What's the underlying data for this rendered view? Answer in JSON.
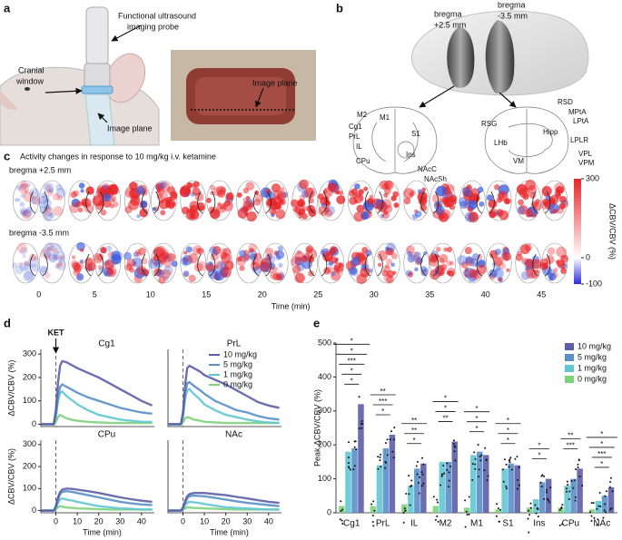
{
  "panel_labels": [
    "a",
    "b",
    "c",
    "d",
    "e"
  ],
  "panel_a": {
    "probe_label": [
      "Functional ultrasound",
      "imaging probe"
    ],
    "window_label": [
      "Cranial",
      "window"
    ],
    "plane_label": "Image plane",
    "photo_label": "Image plane"
  },
  "panel_b": {
    "bregma_front": [
      "bregma",
      "+2.5 mm"
    ],
    "bregma_back": [
      "bregma",
      "-3.5 mm"
    ],
    "regions_front": [
      "M2",
      "M1",
      "Cg1",
      "PrL",
      "IL",
      "S1",
      "CPu",
      "Ins",
      "NAcC",
      "NAcSh"
    ],
    "regions_back": [
      "RSD",
      "MPtA",
      "LPtA",
      "RSG",
      "Hipp",
      "LPLR",
      "LHb",
      "VPL",
      "VPM",
      "VM"
    ]
  },
  "panel_c": {
    "title": "Activity changes in response to 10 mg/kg i.v. ketamine",
    "row_labels": [
      "bregma +2.5 mm",
      "bregma -3.5 mm"
    ],
    "times": [
      0,
      5,
      10,
      15,
      20,
      25,
      30,
      35,
      40,
      45
    ],
    "xlabel": "Time (min)",
    "colorbar": {
      "ticks": [
        300,
        0,
        -100
      ],
      "label": "ΔCBV/CBV (%)"
    }
  },
  "chart_data": [
    {
      "type": "line",
      "title": "Cg1",
      "ylabel": "ΔCBV/CBV (%)",
      "annotation": "KET",
      "vline": 0,
      "x": [
        -7,
        -1,
        0,
        1,
        2,
        3,
        5,
        8,
        10,
        15,
        20,
        25,
        30,
        35,
        40,
        45
      ],
      "xlim": [
        -7,
        46
      ],
      "ylim": [
        -10,
        320
      ],
      "yticks": [
        0,
        100,
        200,
        300
      ],
      "series": [
        {
          "color": "#5b5ea6",
          "values": [
            0,
            0,
            60,
            180,
            250,
            270,
            265,
            250,
            240,
            220,
            200,
            175,
            150,
            125,
            100,
            80
          ]
        },
        {
          "color": "#5a8fc8",
          "values": [
            0,
            0,
            40,
            120,
            160,
            170,
            160,
            145,
            135,
            115,
            100,
            85,
            70,
            60,
            50,
            45
          ]
        },
        {
          "color": "#62c6d4",
          "values": [
            0,
            0,
            30,
            100,
            135,
            140,
            120,
            100,
            85,
            60,
            40,
            30,
            20,
            15,
            10,
            10
          ]
        },
        {
          "color": "#7ed27a",
          "values": [
            0,
            0,
            10,
            30,
            40,
            35,
            25,
            18,
            15,
            10,
            8,
            6,
            5,
            5,
            5,
            5
          ]
        }
      ]
    },
    {
      "type": "line",
      "title": "PrL",
      "legend": "upper right",
      "vline": 0,
      "x": [
        -7,
        -1,
        0,
        1,
        2,
        3,
        5,
        8,
        10,
        15,
        20,
        25,
        30,
        35,
        40,
        45
      ],
      "xlim": [
        -7,
        46
      ],
      "ylim": [
        -10,
        320
      ],
      "series": [
        {
          "name": "10 mg/kg",
          "color": "#5b5ea6",
          "values": [
            0,
            0,
            50,
            170,
            240,
            250,
            240,
            225,
            210,
            190,
            170,
            145,
            120,
            95,
            80,
            70
          ]
        },
        {
          "name": "5 mg/kg",
          "color": "#5a8fc8",
          "values": [
            0,
            0,
            40,
            130,
            175,
            180,
            165,
            145,
            130,
            100,
            80,
            60,
            50,
            35,
            25,
            20
          ]
        },
        {
          "name": "1 mg/kg",
          "color": "#62c6d4",
          "values": [
            0,
            0,
            30,
            110,
            145,
            150,
            130,
            105,
            85,
            60,
            40,
            30,
            20,
            12,
            8,
            5
          ]
        },
        {
          "name": "0 mg/kg",
          "color": "#7ed27a",
          "values": [
            0,
            0,
            8,
            25,
            30,
            28,
            20,
            15,
            10,
            8,
            5,
            5,
            5,
            5,
            5,
            5
          ]
        }
      ]
    },
    {
      "type": "line",
      "title": "CPu",
      "ylabel": "ΔCBV/CBV (%)",
      "xlabel": "Time (min)",
      "vline": 0,
      "x": [
        -7,
        -1,
        0,
        1,
        2,
        3,
        5,
        8,
        10,
        15,
        20,
        25,
        30,
        35,
        40,
        45
      ],
      "xlim": [
        -7,
        46
      ],
      "ylim": [
        -10,
        320
      ],
      "yticks": [
        0,
        100,
        200,
        300
      ],
      "xticks": [
        0,
        10,
        20,
        30,
        40
      ],
      "series": [
        {
          "color": "#5b5ea6",
          "values": [
            0,
            0,
            20,
            60,
            85,
            95,
            100,
            98,
            95,
            88,
            80,
            70,
            60,
            52,
            45,
            40
          ]
        },
        {
          "color": "#5a8fc8",
          "values": [
            0,
            0,
            15,
            50,
            75,
            85,
            88,
            84,
            80,
            70,
            60,
            50,
            40,
            33,
            28,
            25
          ]
        },
        {
          "color": "#62c6d4",
          "values": [
            0,
            0,
            10,
            35,
            50,
            55,
            50,
            45,
            40,
            30,
            20,
            15,
            10,
            8,
            5,
            5
          ]
        },
        {
          "color": "#7ed27a",
          "values": [
            0,
            0,
            5,
            15,
            20,
            18,
            14,
            12,
            10,
            8,
            6,
            5,
            5,
            5,
            5,
            5
          ]
        }
      ]
    },
    {
      "type": "line",
      "title": "NAc",
      "xlabel": "Time (min)",
      "vline": 0,
      "x": [
        -7,
        -1,
        0,
        1,
        2,
        3,
        5,
        8,
        10,
        15,
        20,
        25,
        30,
        35,
        40,
        45
      ],
      "xlim": [
        -7,
        46
      ],
      "ylim": [
        -10,
        320
      ],
      "xticks": [
        0,
        10,
        20,
        30,
        40
      ],
      "series": [
        {
          "color": "#5b5ea6",
          "values": [
            0,
            0,
            15,
            45,
            65,
            75,
            80,
            80,
            80,
            75,
            70,
            62,
            55,
            47,
            40,
            35
          ]
        },
        {
          "color": "#5a8fc8",
          "values": [
            0,
            0,
            10,
            35,
            55,
            65,
            68,
            66,
            65,
            58,
            50,
            42,
            35,
            30,
            25,
            20
          ]
        },
        {
          "color": "#62c6d4",
          "values": [
            0,
            0,
            8,
            25,
            35,
            40,
            38,
            34,
            30,
            22,
            15,
            12,
            10,
            7,
            5,
            5
          ]
        },
        {
          "color": "#7ed27a",
          "values": [
            0,
            0,
            4,
            10,
            15,
            14,
            12,
            11,
            10,
            8,
            6,
            5,
            5,
            5,
            5,
            5
          ]
        }
      ]
    },
    {
      "type": "bar",
      "ylabel": "Peak ΔCBV/CBV (%)",
      "legend": "upper right",
      "categories": [
        "Cg1",
        "PrL",
        "IL",
        "M2",
        "M1",
        "S1",
        "Ins",
        "CPu",
        "NAc"
      ],
      "ylim": [
        0,
        500
      ],
      "yticks": [
        0,
        100,
        200,
        300,
        400,
        500
      ],
      "series": [
        {
          "name": "10 mg/kg",
          "color": "#5b5ea6",
          "values": [
            320,
            230,
            145,
            210,
            170,
            140,
            100,
            130,
            75
          ]
        },
        {
          "name": "5 mg/kg",
          "color": "#5a8fc8",
          "values": [
            190,
            190,
            130,
            150,
            180,
            145,
            90,
            100,
            50
          ]
        },
        {
          "name": "1 mg/kg",
          "color": "#62c6d4",
          "values": [
            180,
            140,
            80,
            150,
            170,
            130,
            40,
            80,
            35
          ]
        },
        {
          "name": "0 mg/kg",
          "color": "#7ed27a",
          "values": [
            20,
            20,
            25,
            20,
            15,
            10,
            15,
            15,
            10
          ]
        }
      ],
      "significance": [
        [
          "*",
          "*",
          "***",
          "*",
          "*"
        ],
        [
          "*",
          "***",
          "**"
        ],
        [
          "*",
          "**",
          "**"
        ],
        [
          "**",
          "*",
          "*"
        ],
        [
          "*",
          "*",
          "*"
        ],
        [
          "*",
          "*",
          "*"
        ],
        [
          "*",
          "*"
        ],
        [
          "***",
          "**"
        ],
        [
          "*",
          "***",
          "*",
          "*"
        ]
      ]
    }
  ]
}
